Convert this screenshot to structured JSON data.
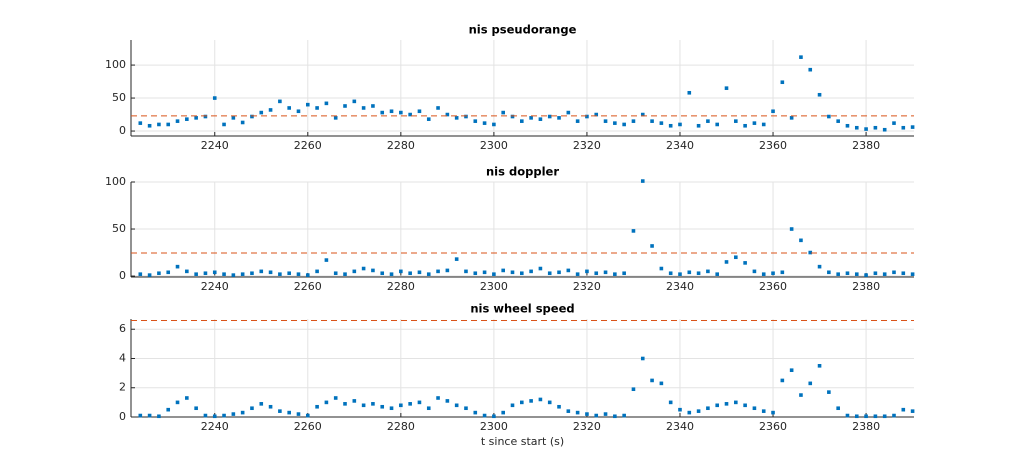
{
  "chart_data": [
    {
      "type": "scatter",
      "title": "nis pseudorange",
      "x": [
        2224,
        2226,
        2228,
        2230,
        2232,
        2234,
        2236,
        2238,
        2240,
        2242,
        2244,
        2246,
        2248,
        2250,
        2252,
        2254,
        2256,
        2258,
        2260,
        2262,
        2264,
        2266,
        2268,
        2270,
        2272,
        2274,
        2276,
        2278,
        2280,
        2282,
        2284,
        2286,
        2288,
        2290,
        2292,
        2294,
        2296,
        2298,
        2300,
        2302,
        2304,
        2306,
        2308,
        2310,
        2312,
        2314,
        2316,
        2318,
        2320,
        2322,
        2324,
        2326,
        2328,
        2330,
        2332,
        2334,
        2336,
        2338,
        2340,
        2342,
        2344,
        2346,
        2348,
        2350,
        2352,
        2354,
        2356,
        2358,
        2360,
        2362,
        2364,
        2366,
        2368,
        2370,
        2372,
        2374,
        2376,
        2378,
        2380,
        2382,
        2384,
        2386,
        2388,
        2390
      ],
      "values": [
        12,
        8,
        10,
        10,
        15,
        18,
        20,
        22,
        50,
        10,
        20,
        13,
        22,
        28,
        32,
        45,
        35,
        30,
        40,
        35,
        42,
        20,
        38,
        45,
        35,
        38,
        28,
        30,
        28,
        25,
        30,
        18,
        35,
        25,
        20,
        22,
        15,
        12,
        10,
        28,
        22,
        15,
        20,
        18,
        22,
        20,
        28,
        15,
        22,
        25,
        15,
        12,
        10,
        15,
        25,
        15,
        12,
        8,
        10,
        58,
        8,
        15,
        10,
        65,
        15,
        8,
        12,
        10,
        30,
        74,
        20,
        112,
        93,
        55,
        22,
        15,
        8,
        5,
        3,
        5,
        2,
        12,
        5,
        6
      ],
      "color": "#0072bd",
      "threshold": 23,
      "threshold_color": "#d95319",
      "xlim": [
        2222,
        2390.3
      ],
      "xticks": [
        2240,
        2260,
        2280,
        2300,
        2320,
        2340,
        2360,
        2380
      ],
      "ylim": [
        -7.5,
        138
      ],
      "yticks": [
        0,
        50,
        100
      ],
      "grid": true
    },
    {
      "type": "scatter",
      "title": "nis doppler",
      "x": [
        2224,
        2226,
        2228,
        2230,
        2232,
        2234,
        2236,
        2238,
        2240,
        2242,
        2244,
        2246,
        2248,
        2250,
        2252,
        2254,
        2256,
        2258,
        2260,
        2262,
        2264,
        2266,
        2268,
        2270,
        2272,
        2274,
        2276,
        2278,
        2280,
        2282,
        2284,
        2286,
        2288,
        2290,
        2292,
        2294,
        2296,
        2298,
        2300,
        2302,
        2304,
        2306,
        2308,
        2310,
        2312,
        2314,
        2316,
        2318,
        2320,
        2322,
        2324,
        2326,
        2328,
        2330,
        2332,
        2334,
        2336,
        2338,
        2340,
        2342,
        2344,
        2346,
        2348,
        2350,
        2352,
        2354,
        2356,
        2358,
        2360,
        2362,
        2364,
        2366,
        2368,
        2370,
        2372,
        2374,
        2376,
        2378,
        2380,
        2382,
        2384,
        2386,
        2388,
        2390
      ],
      "values": [
        2,
        1,
        3,
        4,
        10,
        5,
        2,
        3,
        4,
        2,
        1,
        2,
        3,
        5,
        4,
        2,
        3,
        2,
        1,
        5,
        17,
        3,
        2,
        5,
        8,
        6,
        3,
        2,
        5,
        3,
        4,
        2,
        5,
        6,
        18,
        5,
        3,
        4,
        2,
        6,
        4,
        3,
        5,
        8,
        3,
        4,
        6,
        2,
        5,
        3,
        4,
        2,
        3,
        48,
        101,
        32,
        8,
        3,
        2,
        4,
        3,
        5,
        2,
        15,
        20,
        14,
        5,
        2,
        3,
        4,
        50,
        38,
        25,
        10,
        4,
        2,
        3,
        2,
        1,
        3,
        2,
        4,
        3,
        2
      ],
      "color": "#0072bd",
      "threshold": 24.5,
      "threshold_color": "#d95319",
      "xlim": [
        2222,
        2390.3
      ],
      "xticks": [
        2240,
        2260,
        2280,
        2300,
        2320,
        2340,
        2360,
        2380
      ],
      "ylim": [
        -1,
        100
      ],
      "yticks": [
        0,
        50,
        100
      ],
      "grid": true
    },
    {
      "type": "scatter",
      "title": "nis wheel speed",
      "xlabel": "t since start (s)",
      "x": [
        2224,
        2226,
        2228,
        2230,
        2232,
        2234,
        2236,
        2238,
        2240,
        2242,
        2244,
        2246,
        2248,
        2250,
        2252,
        2254,
        2256,
        2258,
        2260,
        2262,
        2264,
        2266,
        2268,
        2270,
        2272,
        2274,
        2276,
        2278,
        2280,
        2282,
        2284,
        2286,
        2288,
        2290,
        2292,
        2294,
        2296,
        2298,
        2300,
        2302,
        2304,
        2306,
        2308,
        2310,
        2312,
        2314,
        2316,
        2318,
        2320,
        2322,
        2324,
        2326,
        2328,
        2330,
        2332,
        2334,
        2336,
        2338,
        2340,
        2342,
        2344,
        2346,
        2348,
        2350,
        2352,
        2354,
        2356,
        2358,
        2360,
        2362,
        2364,
        2366,
        2368,
        2370,
        2372,
        2374,
        2376,
        2378,
        2380,
        2382,
        2384,
        2386,
        2388,
        2390
      ],
      "values": [
        0.1,
        0.1,
        0.05,
        0.5,
        1.0,
        1.3,
        0.6,
        0.1,
        0.05,
        0.1,
        0.2,
        0.3,
        0.6,
        0.9,
        0.7,
        0.4,
        0.3,
        0.2,
        0.1,
        0.7,
        1.0,
        1.3,
        0.9,
        1.1,
        0.8,
        0.9,
        0.7,
        0.6,
        0.8,
        0.9,
        1.0,
        0.6,
        1.3,
        1.1,
        0.8,
        0.6,
        0.3,
        0.1,
        0.05,
        0.3,
        0.8,
        1.0,
        1.1,
        1.2,
        1.0,
        0.7,
        0.4,
        0.3,
        0.2,
        0.1,
        0.2,
        0.05,
        0.1,
        1.9,
        4.0,
        2.5,
        2.3,
        1.0,
        0.5,
        0.3,
        0.4,
        0.6,
        0.8,
        0.9,
        1.0,
        0.8,
        0.6,
        0.4,
        0.3,
        2.5,
        3.2,
        1.5,
        2.3,
        3.5,
        1.7,
        0.6,
        0.1,
        0.05,
        0.05,
        0.05,
        0.05,
        0.1,
        0.5,
        0.4
      ],
      "color": "#0072bd",
      "threshold": 6.6,
      "threshold_color": "#d95319",
      "xlim": [
        2222,
        2390.3
      ],
      "xticks": [
        2240,
        2260,
        2280,
        2300,
        2320,
        2340,
        2360,
        2380
      ],
      "ylim": [
        0,
        6.7
      ],
      "yticks": [
        0,
        2,
        4,
        6
      ],
      "grid": true
    }
  ]
}
